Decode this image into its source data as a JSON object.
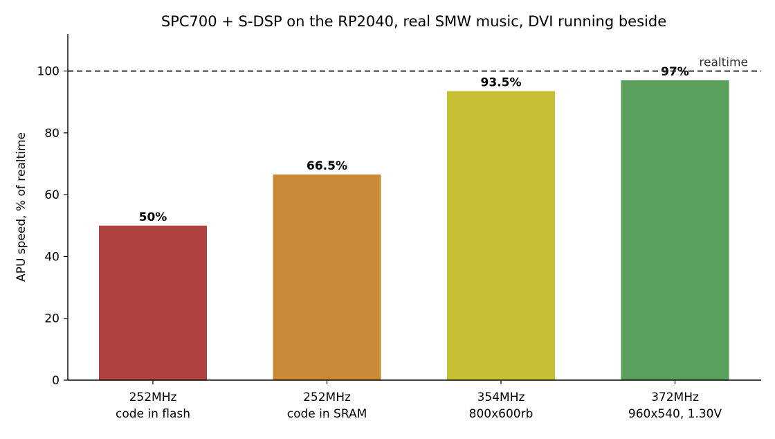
{
  "chart_data": {
    "type": "bar",
    "title": "SPC700 + S-DSP on the RP2040, real SMW music, DVI running beside",
    "ylabel": "APU speed, % of realtime",
    "xlabel": "",
    "ylim": [
      0,
      112
    ],
    "yticks": [
      0,
      20,
      40,
      60,
      80,
      100
    ],
    "grid": false,
    "categories": [
      [
        "252MHz",
        "code in flash"
      ],
      [
        "252MHz",
        "code in SRAM"
      ],
      [
        "354MHz",
        "800x600rb"
      ],
      [
        "372MHz",
        "960x540, 1.30V"
      ]
    ],
    "values": [
      50,
      66.5,
      93.5,
      97
    ],
    "value_labels": [
      "50%",
      "66.5%",
      "93.5%",
      "97%"
    ],
    "colors": [
      "#b04240",
      "#c98a35",
      "#c8c034",
      "#5b9f5c"
    ],
    "reference_line": {
      "value": 100,
      "label": "realtime",
      "style": "dashed",
      "color": "#333333"
    }
  }
}
